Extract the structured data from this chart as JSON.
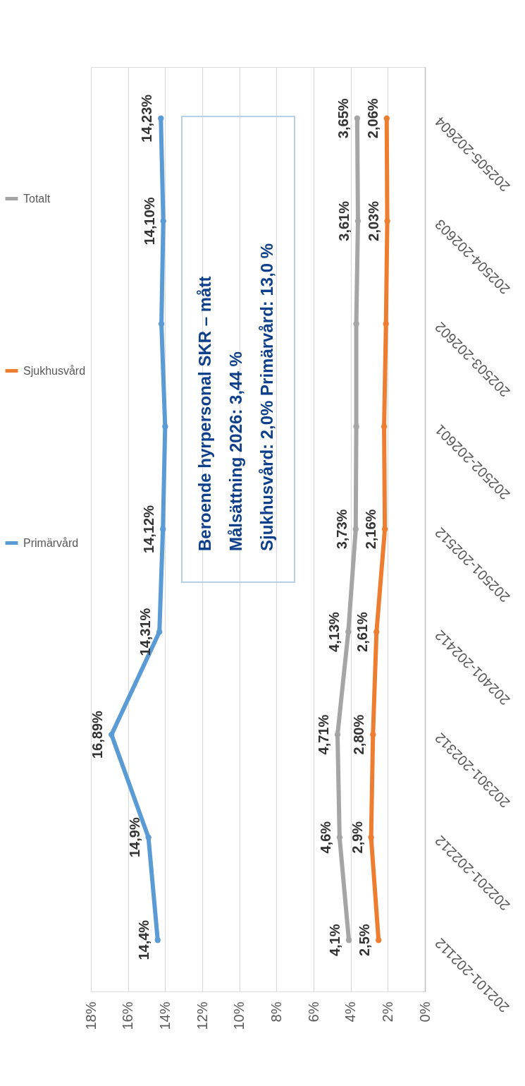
{
  "chart_data": {
    "type": "line",
    "orientation": "horizontal",
    "categories": [
      "202505-202604",
      "202504-202603",
      "202503-202602",
      "202502-202601",
      "202501-202512",
      "202401-202412",
      "202301-202312",
      "202201-202212",
      "202101-202112"
    ],
    "series": [
      {
        "name": "Primärvård",
        "color": "#5b9bd5",
        "values": [
          14.23,
          14.1,
          14.2,
          14.0,
          14.12,
          14.31,
          16.89,
          14.9,
          14.4
        ],
        "value_labels": [
          "14,23%",
          "14,10%",
          null,
          null,
          "14,12%",
          "14,31%",
          "16,89%",
          "14,9%",
          "14,4%"
        ]
      },
      {
        "name": "Sjukhusvård",
        "color": "#ed7d31",
        "values": [
          2.06,
          2.03,
          2.1,
          2.2,
          2.16,
          2.61,
          2.8,
          2.9,
          2.5
        ],
        "value_labels": [
          "2,06%",
          "2,03%",
          null,
          null,
          "2,16%",
          "2,61%",
          "2,80%",
          "2,9%",
          "2,5%"
        ]
      },
      {
        "name": "Totalt",
        "color": "#a5a5a5",
        "values": [
          3.65,
          3.61,
          3.7,
          3.7,
          3.73,
          4.13,
          4.71,
          4.6,
          4.1
        ],
        "value_labels": [
          "3,65%",
          "3,61%",
          null,
          null,
          "3,73%",
          "4,13%",
          "4,71%",
          "4,6%",
          "4,1%"
        ]
      }
    ],
    "xlim": [
      18,
      0
    ],
    "xticks": [
      {
        "value": 18,
        "label": "18%"
      },
      {
        "value": 16,
        "label": "16%"
      },
      {
        "value": 14,
        "label": "14%"
      },
      {
        "value": 12,
        "label": "12%"
      },
      {
        "value": 10,
        "label": "10%"
      },
      {
        "value": 8,
        "label": "8%"
      },
      {
        "value": 6,
        "label": "6%"
      },
      {
        "value": 4,
        "label": "4%"
      },
      {
        "value": 2,
        "label": "2%"
      },
      {
        "value": 0,
        "label": "0%"
      }
    ],
    "grid": "x",
    "legend": "left",
    "marker": "circle",
    "line_style": "solid",
    "annotations": [
      "Beroende hyrpersonal SKR – mått",
      "Målsättning 2026: 3,44 %",
      "Sjukhusvård: 2,0%  Primärvård: 13,0 %"
    ]
  }
}
